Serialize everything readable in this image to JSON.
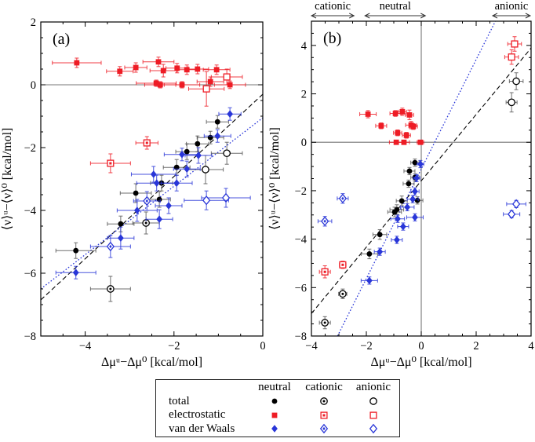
{
  "colors": {
    "total": "#000000",
    "electrostatic": "#ee1c25",
    "vdw": "#2936d8",
    "frame": "#000000",
    "zero_line": "#777777"
  },
  "legend": {
    "columns": [
      "neutral",
      "cationic",
      "anionic"
    ],
    "variants": [
      "filled",
      "dotcenter",
      "open"
    ],
    "rows": [
      {
        "label": "total",
        "component": "total",
        "marker": "circle"
      },
      {
        "label": "electrostatic",
        "component": "electrostatic",
        "marker": "square"
      },
      {
        "label": "van der Waals",
        "component": "vdw",
        "marker": "diamond"
      }
    ]
  },
  "chart_data": [
    {
      "type": "scatter",
      "tag": "(a)",
      "xlabel": "Δμᵘ−Δμ⁰ [kcal/mol]",
      "ylabel": "⟨ν⟩ᵘ−⟨ν⟩⁰ [kcal/mol]",
      "xlim": [
        -5,
        0
      ],
      "ylim": [
        -8,
        2
      ],
      "xticks": [
        -4,
        -2,
        0
      ],
      "yticks": [
        2,
        0,
        -2,
        -4,
        -6,
        -8
      ],
      "minor_step": 0.5,
      "hline": 0,
      "vline": null,
      "annotations": [],
      "fit_lines": [
        {
          "name": "total-fit",
          "component": "total",
          "style": "dashed",
          "x1": -5,
          "y1": -6.85,
          "x2": 0,
          "y2": -0.3
        },
        {
          "name": "vdw-fit",
          "component": "vdw",
          "style": "dotted",
          "x1": -5,
          "y1": -6.5,
          "x2": 0,
          "y2": -1.05
        }
      ],
      "series": [
        {
          "name": "total-neutral",
          "component": "total",
          "charge": "neutral",
          "marker": "circle",
          "variant": "filled",
          "points": [
            [
              -4.21,
              -5.28,
              0.45,
              0.25
            ],
            [
              -3.2,
              -4.43,
              0.3,
              0.25
            ],
            [
              -2.86,
              -3.45,
              0.35,
              0.3
            ],
            [
              -2.33,
              -3.65,
              0.25,
              0.25
            ],
            [
              -2.28,
              -3.13,
              0.25,
              0.25
            ],
            [
              -1.94,
              -2.63,
              0.3,
              0.25
            ],
            [
              -1.71,
              -2.13,
              0.25,
              0.25
            ],
            [
              -1.47,
              -1.88,
              0.25,
              0.25
            ],
            [
              -1.18,
              -1.68,
              0.3,
              0.2
            ],
            [
              -1.02,
              -1.18,
              0.25,
              0.2
            ]
          ]
        },
        {
          "name": "total-cationic",
          "component": "total",
          "charge": "cationic",
          "marker": "circle",
          "variant": "dotcenter",
          "points": [
            [
              -2.63,
              -4.4,
              0.3,
              0.35
            ],
            [
              -3.43,
              -6.5,
              0.45,
              0.4
            ]
          ]
        },
        {
          "name": "total-anionic",
          "component": "total",
          "charge": "anionic",
          "marker": "circle",
          "variant": "open",
          "points": [
            [
              -0.81,
              -2.18,
              0.35,
              0.35
            ],
            [
              -1.29,
              -2.7,
              0.4,
              0.45
            ]
          ]
        },
        {
          "name": "electrostatic-neutral",
          "component": "electrostatic",
          "charge": "neutral",
          "marker": "square",
          "variant": "filled",
          "points": [
            [
              -4.19,
              0.7,
              0.55,
              0.15
            ],
            [
              -3.22,
              0.43,
              0.3,
              0.15
            ],
            [
              -2.86,
              0.55,
              0.25,
              0.15
            ],
            [
              -2.35,
              0.73,
              0.35,
              0.15
            ],
            [
              -2.24,
              0.45,
              0.3,
              0.2
            ],
            [
              -1.93,
              0.53,
              0.25,
              0.15
            ],
            [
              -1.71,
              0.48,
              0.2,
              0.15
            ],
            [
              -1.47,
              0.5,
              0.25,
              0.15
            ],
            [
              -1.04,
              0.48,
              0.3,
              0.15
            ],
            [
              -2.4,
              0.05,
              0.45,
              0.1
            ],
            [
              -2.31,
              0.0,
              0.35,
              0.1
            ],
            [
              -1.82,
              0.0,
              0.4,
              0.1
            ],
            [
              -1.18,
              0.1,
              0.3,
              0.15
            ],
            [
              -0.74,
              0.0,
              0.35,
              0.12
            ]
          ]
        },
        {
          "name": "electrostatic-cationic",
          "component": "electrostatic",
          "charge": "cationic",
          "marker": "square",
          "variant": "dotcenter",
          "points": [
            [
              -2.61,
              -1.85,
              0.25,
              0.2
            ],
            [
              -3.43,
              -2.5,
              0.45,
              0.3
            ]
          ]
        },
        {
          "name": "electrostatic-anionic",
          "component": "electrostatic",
          "charge": "anionic",
          "marker": "square",
          "variant": "open",
          "points": [
            [
              -0.81,
              0.25,
              0.35,
              0.25
            ],
            [
              -1.27,
              -0.13,
              0.4,
              0.55
            ]
          ]
        },
        {
          "name": "vdw-neutral",
          "component": "vdw",
          "charge": "neutral",
          "marker": "diamond",
          "variant": "filled",
          "points": [
            [
              -4.21,
              -5.98,
              0.45,
              0.2
            ],
            [
              -3.2,
              -4.88,
              0.3,
              0.35
            ],
            [
              -2.83,
              -4.0,
              0.45,
              0.35
            ],
            [
              -2.33,
              -4.28,
              0.3,
              0.3
            ],
            [
              -2.12,
              -3.85,
              0.3,
              0.25
            ],
            [
              -2.46,
              -2.85,
              0.5,
              0.25
            ],
            [
              -2.39,
              -3.13,
              0.45,
              0.25
            ],
            [
              -1.94,
              -3.13,
              0.35,
              0.25
            ],
            [
              -1.82,
              -2.22,
              0.4,
              0.2
            ],
            [
              -1.71,
              -2.68,
              0.3,
              0.25
            ],
            [
              -1.45,
              -2.25,
              0.3,
              0.25
            ],
            [
              -1.02,
              -1.63,
              0.3,
              0.2
            ],
            [
              -0.74,
              -0.93,
              0.25,
              0.2
            ]
          ]
        },
        {
          "name": "vdw-cationic",
          "component": "vdw",
          "charge": "cationic",
          "marker": "diamond",
          "variant": "dotcenter",
          "points": [
            [
              -2.61,
              -3.7,
              0.3,
              0.3
            ],
            [
              -3.43,
              -5.15,
              0.45,
              0.35
            ]
          ]
        },
        {
          "name": "vdw-anionic",
          "component": "vdw",
          "charge": "anionic",
          "marker": "diamond",
          "variant": "open",
          "points": [
            [
              -0.83,
              -3.6,
              0.55,
              0.3
            ],
            [
              -1.27,
              -3.68,
              0.5,
              0.3
            ]
          ]
        }
      ]
    },
    {
      "type": "scatter",
      "tag": "(b)",
      "xlabel": "Δμᵘ−Δμ⁰ [kcal/mol]",
      "ylabel": "⟨ν⟩ᵘ−⟨ν⟩⁰ [kcal/mol]",
      "xlim": [
        -4,
        4
      ],
      "ylim": [
        -8,
        5
      ],
      "xticks": [
        -4,
        -2,
        0,
        2,
        4
      ],
      "yticks": [
        4,
        2,
        0,
        -2,
        -4,
        -6,
        -8
      ],
      "minor_step": 0.5,
      "hline": 0,
      "vline": 0,
      "annotations": [
        {
          "label": "cationic",
          "x1": -4.0,
          "x2": -2.45
        },
        {
          "label": "neutral",
          "x1": -2.05,
          "x2": 0.15
        },
        {
          "label": "anionic",
          "x1": 2.6,
          "x2": 3.97
        }
      ],
      "fit_lines": [
        {
          "name": "total-fit",
          "component": "total",
          "style": "dashed",
          "x1": -4,
          "y1": -7.07,
          "x2": 4,
          "y2": 3.89
        },
        {
          "name": "vdw-fit",
          "component": "vdw",
          "style": "dotted",
          "x1": -3.05,
          "y1": -8.0,
          "x2": 2.7,
          "y2": 5.0
        }
      ],
      "series": [
        {
          "name": "total-neutral",
          "component": "total",
          "charge": "neutral",
          "marker": "circle",
          "variant": "filled",
          "points": [
            [
              -0.23,
              -0.84,
              0.15,
              0.15
            ],
            [
              -0.43,
              -1.19,
              0.2,
              0.15
            ],
            [
              -0.23,
              -1.45,
              0.15,
              0.15
            ],
            [
              -0.46,
              -1.71,
              0.2,
              0.15
            ],
            [
              -0.14,
              -2.4,
              0.2,
              0.15
            ],
            [
              -0.71,
              -2.42,
              0.2,
              0.2
            ],
            [
              -0.89,
              -2.78,
              0.25,
              0.2
            ],
            [
              -0.97,
              -2.88,
              0.25,
              0.2
            ],
            [
              -1.51,
              -3.81,
              0.25,
              0.2
            ],
            [
              -1.89,
              -4.61,
              0.3,
              0.2
            ]
          ]
        },
        {
          "name": "total-cationic",
          "component": "total",
          "charge": "cationic",
          "marker": "circle",
          "variant": "dotcenter",
          "points": [
            [
              -2.86,
              -6.26,
              0.15,
              0.2
            ],
            [
              -3.51,
              -7.45,
              0.2,
              0.25
            ]
          ]
        },
        {
          "name": "total-anionic",
          "component": "total",
          "charge": "anionic",
          "marker": "circle",
          "variant": "open",
          "points": [
            [
              3.46,
              2.52,
              0.25,
              0.35
            ],
            [
              3.29,
              1.65,
              0.2,
              0.4
            ]
          ]
        },
        {
          "name": "electrostatic-neutral",
          "component": "electrostatic",
          "charge": "neutral",
          "marker": "square",
          "variant": "filled",
          "points": [
            [
              -1.94,
              1.16,
              0.3,
              0.15
            ],
            [
              -1.46,
              0.68,
              0.2,
              0.12
            ],
            [
              -0.94,
              1.19,
              0.2,
              0.12
            ],
            [
              -0.69,
              1.26,
              0.15,
              0.15
            ],
            [
              -0.43,
              1.13,
              0.15,
              0.2
            ],
            [
              -0.37,
              0.71,
              0.2,
              0.15
            ],
            [
              -0.29,
              0.65,
              0.15,
              0.12
            ],
            [
              -0.86,
              0.39,
              0.15,
              0.12
            ],
            [
              -0.54,
              0.29,
              0.15,
              0.12
            ],
            [
              -0.91,
              0.0,
              0.25,
              0.08
            ],
            [
              -0.63,
              0.0,
              0.2,
              0.08
            ],
            [
              -0.03,
              0.0,
              0.12,
              0.08
            ]
          ]
        },
        {
          "name": "electrostatic-cationic",
          "component": "electrostatic",
          "charge": "cationic",
          "marker": "square",
          "variant": "dotcenter",
          "points": [
            [
              -2.86,
              -5.06,
              0.12,
              0.15
            ],
            [
              -3.51,
              -5.35,
              0.2,
              0.25
            ]
          ]
        },
        {
          "name": "electrostatic-anionic",
          "component": "electrostatic",
          "charge": "anionic",
          "marker": "square",
          "variant": "open",
          "points": [
            [
              3.4,
              4.06,
              0.25,
              0.3
            ],
            [
              3.29,
              3.52,
              0.25,
              0.3
            ]
          ]
        },
        {
          "name": "vdw-neutral",
          "component": "vdw",
          "charge": "neutral",
          "marker": "diamond",
          "variant": "filled",
          "points": [
            [
              -0.03,
              -0.9,
              0.12,
              0.15
            ],
            [
              -0.17,
              -1.48,
              0.12,
              0.15
            ],
            [
              -0.23,
              -2.03,
              0.15,
              0.15
            ],
            [
              -0.31,
              -2.35,
              0.2,
              0.15
            ],
            [
              -0.51,
              -2.68,
              0.25,
              0.15
            ],
            [
              -0.23,
              -3.1,
              0.3,
              0.15
            ],
            [
              -0.86,
              -3.16,
              0.25,
              0.15
            ],
            [
              -0.66,
              -3.48,
              0.2,
              0.15
            ],
            [
              -0.89,
              -4.03,
              0.2,
              0.15
            ],
            [
              -1.51,
              -4.52,
              0.2,
              0.15
            ],
            [
              -1.89,
              -5.71,
              0.3,
              0.15
            ]
          ]
        },
        {
          "name": "vdw-cationic",
          "component": "vdw",
          "charge": "cationic",
          "marker": "diamond",
          "variant": "dotcenter",
          "points": [
            [
              -2.86,
              -2.32,
              0.2,
              0.2
            ],
            [
              -3.51,
              -3.26,
              0.25,
              0.2
            ]
          ]
        },
        {
          "name": "vdw-anionic",
          "component": "vdw",
          "charge": "anionic",
          "marker": "diamond",
          "variant": "open",
          "points": [
            [
              3.46,
              -2.55,
              0.35,
              0.15
            ],
            [
              3.29,
              -2.97,
              0.3,
              0.15
            ]
          ]
        }
      ]
    }
  ]
}
